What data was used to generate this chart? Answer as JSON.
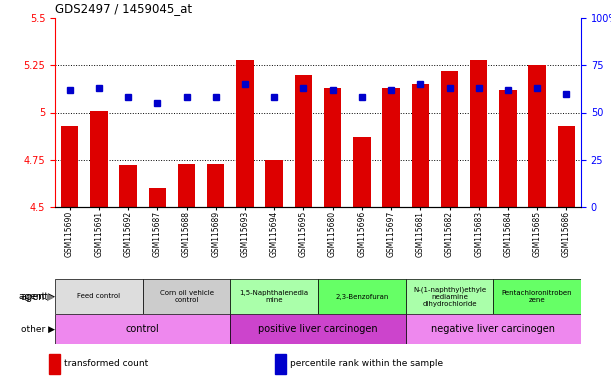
{
  "title": "GDS2497 / 1459045_at",
  "samples": [
    "GSM115690",
    "GSM115691",
    "GSM115692",
    "GSM115687",
    "GSM115688",
    "GSM115689",
    "GSM115693",
    "GSM115694",
    "GSM115695",
    "GSM115680",
    "GSM115696",
    "GSM115697",
    "GSM115681",
    "GSM115682",
    "GSM115683",
    "GSM115684",
    "GSM115685",
    "GSM115686"
  ],
  "transformed_count": [
    4.93,
    5.01,
    4.72,
    4.6,
    4.73,
    4.73,
    5.28,
    4.75,
    5.2,
    5.13,
    4.87,
    5.13,
    5.15,
    5.22,
    5.28,
    5.12,
    5.25,
    4.93
  ],
  "percentile_rank": [
    62,
    63,
    58,
    55,
    58,
    58,
    65,
    58,
    63,
    62,
    58,
    62,
    65,
    63,
    63,
    62,
    63,
    60
  ],
  "ylim_left": [
    4.5,
    5.5
  ],
  "ylim_right": [
    0,
    100
  ],
  "yticks_left": [
    4.5,
    4.75,
    5.0,
    5.25,
    5.5
  ],
  "yticks_right": [
    0,
    25,
    50,
    75,
    100
  ],
  "ytick_labels_left": [
    "4.5",
    "4.75",
    "5",
    "5.25",
    "5.5"
  ],
  "ytick_labels_right": [
    "0",
    "25",
    "50",
    "75",
    "100%"
  ],
  "bar_color": "#dd0000",
  "dot_color": "#0000cc",
  "agent_groups": [
    {
      "label": "Feed control",
      "start": 0,
      "end": 3,
      "color": "#dddddd"
    },
    {
      "label": "Corn oil vehicle\ncontrol",
      "start": 3,
      "end": 6,
      "color": "#cccccc"
    },
    {
      "label": "1,5-Naphthalenedia\nmine",
      "start": 6,
      "end": 9,
      "color": "#aaffaa"
    },
    {
      "label": "2,3-Benzofuran",
      "start": 9,
      "end": 12,
      "color": "#66ff66"
    },
    {
      "label": "N-(1-naphthyl)ethyle\nnediamine\ndihydrochloride",
      "start": 12,
      "end": 15,
      "color": "#aaffaa"
    },
    {
      "label": "Pentachloronitroben\nzene",
      "start": 15,
      "end": 18,
      "color": "#66ff66"
    }
  ],
  "other_groups": [
    {
      "label": "control",
      "start": 0,
      "end": 6,
      "color": "#ee88ee"
    },
    {
      "label": "positive liver carcinogen",
      "start": 6,
      "end": 12,
      "color": "#cc44cc"
    },
    {
      "label": "negative liver carcinogen",
      "start": 12,
      "end": 18,
      "color": "#ee88ee"
    }
  ],
  "legend_items": [
    {
      "label": "transformed count",
      "color": "#dd0000"
    },
    {
      "label": "percentile rank within the sample",
      "color": "#0000cc"
    }
  ]
}
